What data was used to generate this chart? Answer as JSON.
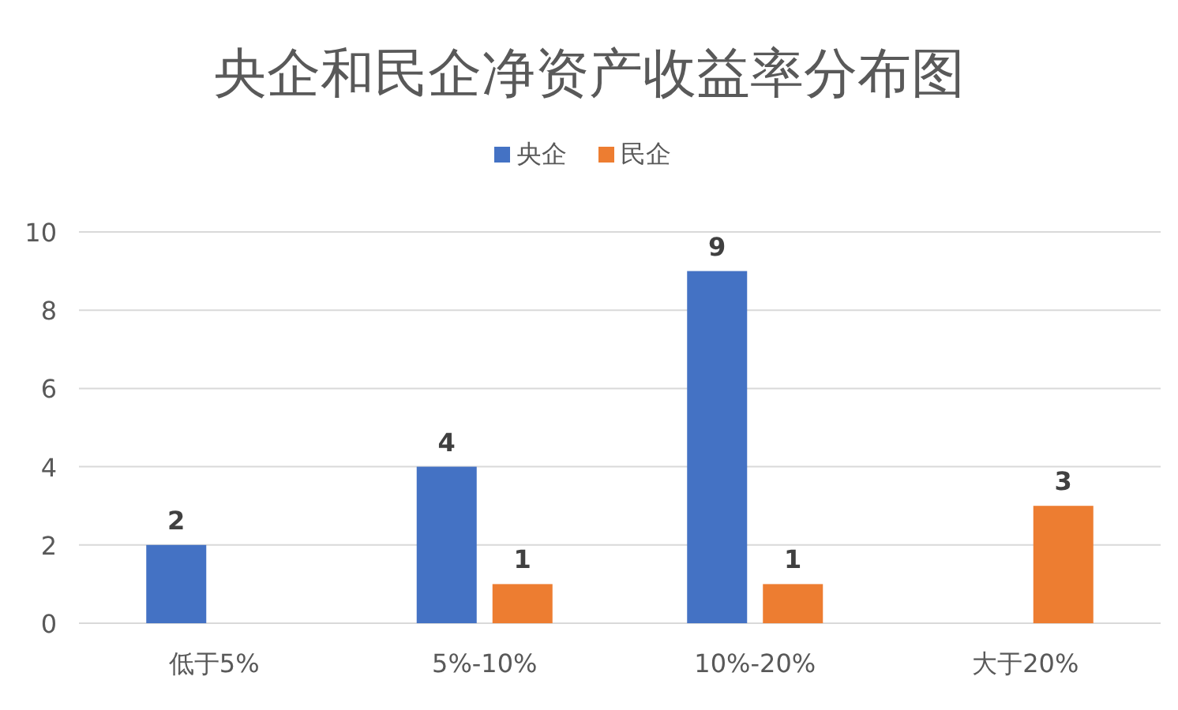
{
  "chart_data": {
    "type": "bar",
    "title": "央企和民企净资产收益率分布图",
    "categories": [
      "低于5%",
      "5%-10%",
      "10%-20%",
      "大于20%"
    ],
    "series": [
      {
        "name": "央企",
        "color": "#4472c4",
        "values": [
          2,
          4,
          9,
          null
        ]
      },
      {
        "name": "民企",
        "color": "#ed7d31",
        "values": [
          null,
          1,
          1,
          3
        ]
      }
    ],
    "ylim": [
      0,
      10
    ],
    "yticks": [
      0,
      2,
      4,
      6,
      8,
      10
    ],
    "grid": "y",
    "legend": "top",
    "data_labels": true
  }
}
